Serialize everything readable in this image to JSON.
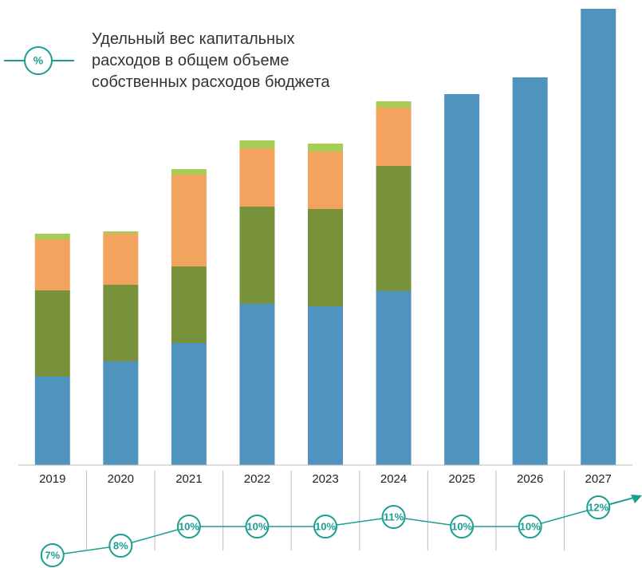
{
  "chart_data": {
    "type": "bar",
    "stacked": true,
    "categories": [
      "2019",
      "2020",
      "2021",
      "2022",
      "2023",
      "2024",
      "2025",
      "2026",
      "2027"
    ],
    "series": [
      {
        "color": "#4f93bf",
        "values": [
          111,
          130,
          153,
          202,
          199,
          218,
          465,
          486,
          572
        ]
      },
      {
        "color": "#77923b",
        "values": [
          108,
          96,
          96,
          122,
          122,
          157,
          null,
          null,
          null
        ]
      },
      {
        "color": "#f2a35e",
        "values": [
          64,
          64,
          115,
          73,
          72,
          73,
          null,
          null,
          null
        ]
      },
      {
        "color": "#a6cc55",
        "values": [
          7,
          3,
          7,
          10,
          10,
          8,
          null,
          null,
          null
        ]
      },
      {
        "type": "line",
        "axis": "y2",
        "name": "Удельный вес капитальных расходов в общем объеме собственных расходов бюджета",
        "legend_symbol": "%",
        "color": "#1a9e8f",
        "values": [
          7,
          8,
          10,
          10,
          10,
          11,
          10,
          10,
          12
        ],
        "value_labels": [
          "7%",
          "8%",
          "10%",
          "10%",
          "10%",
          "11%",
          "10%",
          "10%",
          "12%"
        ]
      }
    ],
    "ylim": [
      0,
      572
    ],
    "y2lim": [
      6,
      15
    ]
  }
}
